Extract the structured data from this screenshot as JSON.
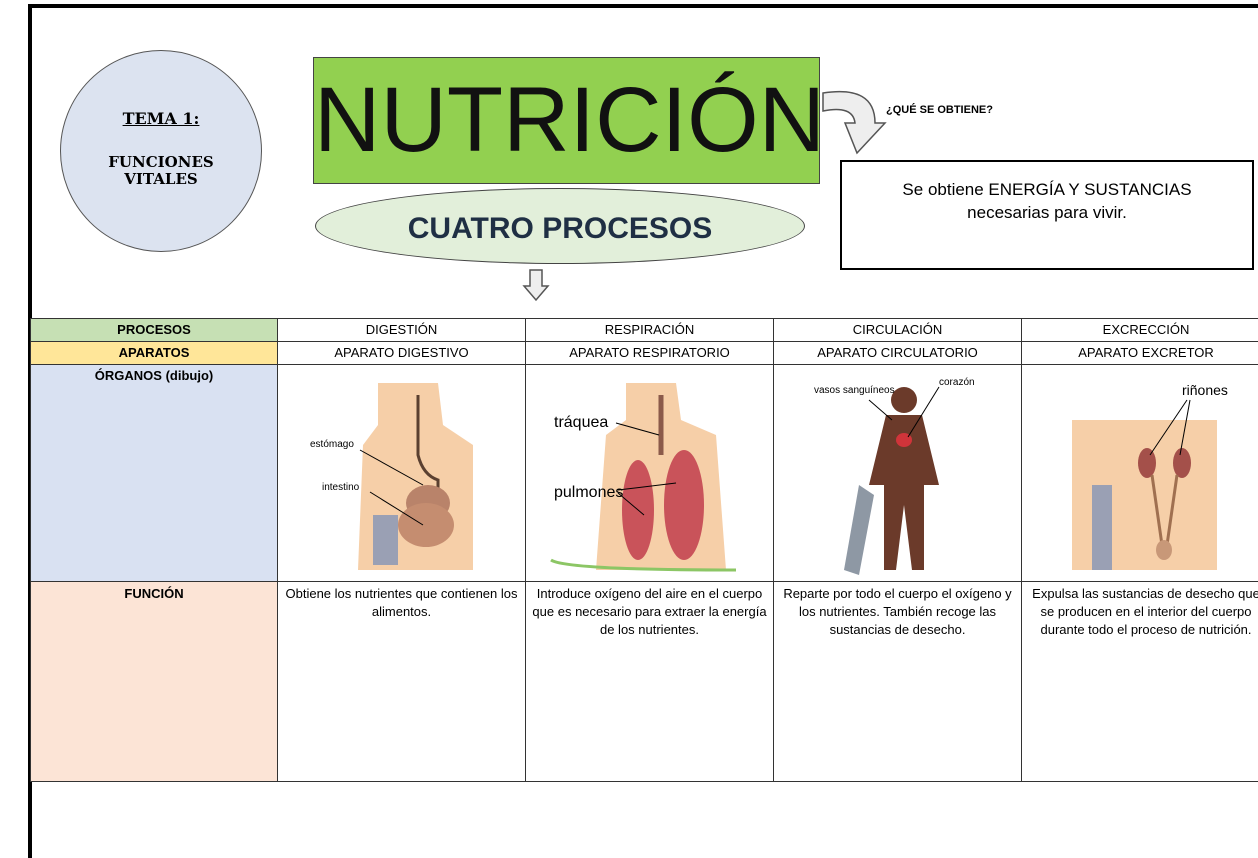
{
  "tema": {
    "title": "TEMA 1:",
    "subtitle": "FUNCIONES VITALES"
  },
  "title": "NUTRICIÓN",
  "question": "¿QUÉ SE OBTIENE?",
  "answer": "Se obtiene ENERGÍA Y SUSTANCIAS necesarias para vivir.",
  "processes_label": "CUATRO PROCESOS",
  "table": {
    "rows": [
      [
        "PROCESOS",
        "DIGESTIÓN",
        "RESPIRACIÓN",
        "CIRCULACIÓN",
        "EXCRECCIÓN"
      ],
      [
        "APARATOS",
        "APARATO DIGESTIVO",
        "APARATO RESPIRATORIO",
        "APARATO CIRCULATORIO",
        "APARATO EXCRETOR"
      ],
      [
        "ÓRGANOS (dibujo)"
      ],
      [
        "FUNCIÓN",
        "Obtiene los nutrientes que contienen los alimentos.",
        "Introduce oxígeno del aire en el cuerpo que es necesario para extraer la energía de los nutrientes.",
        "Reparte por todo el cuerpo el oxígeno y los nutrientes. También recoge las sustancias de desecho.",
        "Expulsa las sustancias de desecho que se producen en el interior del cuerpo durante todo el proceso de nutrición."
      ]
    ]
  },
  "drawings": [
    [
      "estómago",
      "intestino"
    ],
    [
      "tráquea",
      "pulmones"
    ],
    [
      "vasos sanguíneos",
      "corazón"
    ],
    [
      "riñones"
    ]
  ]
}
